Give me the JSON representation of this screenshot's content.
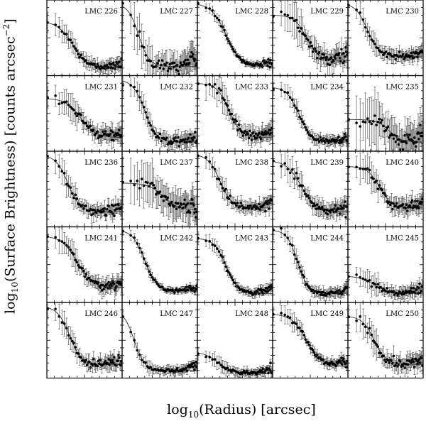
{
  "figure": {
    "ylabel_pre": "log",
    "ylabel_sub": "10",
    "ylabel_mid": "(Surface Brightness) [counts arcsec",
    "ylabel_sup": "−2",
    "ylabel_post": "]",
    "xlabel_pre": "log",
    "xlabel_sub": "10",
    "xlabel_post": "(Radius) [arcsec]"
  },
  "chart_data": {
    "type": "scatter",
    "layout": "5x5 grid of panels with error bars and fitted profile curves",
    "axes": "no tick labels printed",
    "panels": [
      {
        "label": "LMC 226",
        "core": 0.85,
        "fit": [
          0.72,
          0.1,
          0.34,
          0.1
        ],
        "scatter": 0.06
      },
      {
        "label": "LMC 227",
        "core": 0.85,
        "fit": [
          0.95,
          0.12,
          0.22,
          0.07
        ],
        "scatter": 0.12
      },
      {
        "label": "LMC 228",
        "core": 0.85,
        "fit": [
          0.96,
          0.12,
          0.38,
          0.1
        ],
        "scatter": 0.03
      },
      {
        "label": "LMC 229",
        "core": 0.85,
        "fit": [
          0.8,
          0.2,
          0.45,
          0.08
        ],
        "scatter": 0.1
      },
      {
        "label": "LMC 230",
        "core": 0.85,
        "fit": [
          0.96,
          0.25,
          0.26,
          0.08
        ],
        "scatter": 0.06
      },
      {
        "label": "LMC 231",
        "core": 0.45,
        "fit": [
          0.7,
          0.18,
          0.45,
          0.1
        ],
        "scatter": 0.08
      },
      {
        "label": "LMC 232",
        "core": 0.85,
        "fit": [
          0.95,
          0.12,
          0.3,
          0.08
        ],
        "scatter": 0.07
      },
      {
        "label": "LMC 233",
        "core": 0.85,
        "fit": [
          0.9,
          0.18,
          0.42,
          0.08
        ],
        "scatter": 0.08
      },
      {
        "label": "LMC 234",
        "core": 0.85,
        "fit": [
          0.85,
          0.12,
          0.35,
          0.08
        ],
        "scatter": 0.05
      },
      {
        "label": "LMC 235",
        "core": 0.45,
        "fit": [
          0.42,
          0.12,
          0.55,
          0.08
        ],
        "scatter": 0.15
      },
      {
        "label": "LMC 236",
        "core": 0.85,
        "fit": [
          0.95,
          0.2,
          0.28,
          0.08
        ],
        "scatter": 0.07
      },
      {
        "label": "LMC 237",
        "core": 0.45,
        "fit": [
          0.58,
          0.22,
          0.55,
          0.1
        ],
        "scatter": 0.14
      },
      {
        "label": "LMC 238",
        "core": 0.85,
        "fit": [
          0.96,
          0.25,
          0.3,
          0.08
        ],
        "scatter": 0.06
      },
      {
        "label": "LMC 239",
        "core": 0.85,
        "fit": [
          0.88,
          0.2,
          0.38,
          0.1
        ],
        "scatter": 0.08
      },
      {
        "label": "LMC 240",
        "core": 0.85,
        "fit": [
          0.8,
          0.25,
          0.42,
          0.08
        ],
        "scatter": 0.08
      },
      {
        "label": "LMC 241",
        "core": 0.85,
        "fit": [
          0.88,
          0.2,
          0.4,
          0.1
        ],
        "scatter": 0.07
      },
      {
        "label": "LMC 242",
        "core": 0.85,
        "fit": [
          0.96,
          0.15,
          0.3,
          0.08
        ],
        "scatter": 0.03
      },
      {
        "label": "LMC 243",
        "core": 0.85,
        "fit": [
          0.85,
          0.12,
          0.38,
          0.08
        ],
        "scatter": 0.04
      },
      {
        "label": "LMC 244",
        "core": 0.85,
        "fit": [
          0.96,
          0.12,
          0.33,
          0.07
        ],
        "scatter": 0.05
      },
      {
        "label": "LMC 245",
        "core": 0.85,
        "fit": [
          0.35,
          0.12,
          0.35,
          0.1
        ],
        "scatter": 0.06
      },
      {
        "label": "LMC 246",
        "core": 0.85,
        "fit": [
          0.95,
          0.18,
          0.3,
          0.08
        ],
        "scatter": 0.07
      },
      {
        "label": "LMC 247",
        "core": 0.85,
        "fit": [
          0.9,
          0.1,
          0.16,
          0.07
        ],
        "scatter": 0.04
      },
      {
        "label": "LMC 248",
        "core": 0.85,
        "fit": [
          0.35,
          0.06,
          0.28,
          0.1
        ],
        "scatter": 0.04
      },
      {
        "label": "LMC 249",
        "core": 0.85,
        "fit": [
          0.85,
          0.15,
          0.45,
          0.1
        ],
        "scatter": 0.05
      },
      {
        "label": "LMC 250",
        "core": 0.85,
        "fit": [
          0.82,
          0.18,
          0.35,
          0.08
        ],
        "scatter": 0.08
      }
    ]
  }
}
